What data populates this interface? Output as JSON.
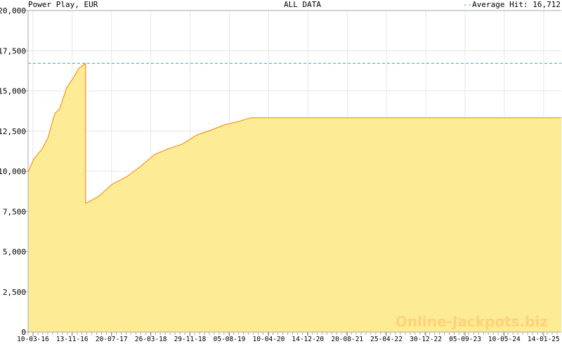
{
  "header": {
    "title": "Power Play, EUR",
    "range": "ALL DATA",
    "legend_marker": "--",
    "legend_label": "Average Hit: 16,712"
  },
  "watermark": "Online-Jackpots.biz",
  "chart_data": {
    "type": "area",
    "title": "Power Play, EUR",
    "xlabel": "",
    "ylabel": "",
    "ylim": [
      0,
      20000
    ],
    "xlim": [
      "2016-02-08",
      "2025-05-06"
    ],
    "grid": true,
    "legend": "top-right",
    "y_ticks": [
      0,
      2500,
      5000,
      7500,
      10000,
      12500,
      15000,
      17500,
      20000
    ],
    "y_tick_labels": [
      "0",
      "2,500",
      "5,000",
      "7,500",
      "10,000",
      "12,500",
      "15,000",
      "17,500",
      "20,000"
    ],
    "x_ticks": [
      "2016-03-10",
      "2016-11-13",
      "2017-07-20",
      "2018-03-26",
      "2018-11-29",
      "2019-08-05",
      "2020-04-10",
      "2020-12-14",
      "2021-08-20",
      "2022-04-25",
      "2022-12-30",
      "2023-09-05",
      "2024-05-10",
      "2025-01-14"
    ],
    "x_tick_labels": [
      "10-03-16",
      "13-11-16",
      "20-07-17",
      "26-03-18",
      "29-11-18",
      "05-08-19",
      "10-04-20",
      "14-12-20",
      "20-08-21",
      "25-04-22",
      "30-12-22",
      "05-09-23",
      "10-05-24",
      "14-01-25"
    ],
    "average_line": {
      "label": "Average Hit: 16,712",
      "value": 16712,
      "color": "#3399DD"
    },
    "colors": {
      "fill": "#FEEB95",
      "line": "#FF8000",
      "grid": "#E6E6E6",
      "axis": "#AAAAAA"
    },
    "series": [
      {
        "x": [
          "2016-02-08",
          "2016-03-14",
          "2016-05-07",
          "2016-06-11",
          "2016-07-26",
          "2016-08-26",
          "2016-10-09",
          "2016-11-23",
          "2016-12-24",
          "2017-02-06",
          "2017-02-06",
          "2017-04-27",
          "2017-07-25",
          "2017-10-22",
          "2018-01-19",
          "2018-04-18",
          "2018-07-16",
          "2018-10-13",
          "2019-01-09",
          "2019-04-08",
          "2019-07-06",
          "2019-10-03",
          "2019-12-18",
          "2025-05-06"
        ],
        "y": [
          9950,
          10750,
          11400,
          12050,
          13600,
          13900,
          15200,
          15850,
          16400,
          16712,
          8000,
          8430,
          9200,
          9650,
          10300,
          11050,
          11400,
          11700,
          12250,
          12550,
          12900,
          13100,
          13330,
          13330
        ]
      }
    ]
  }
}
